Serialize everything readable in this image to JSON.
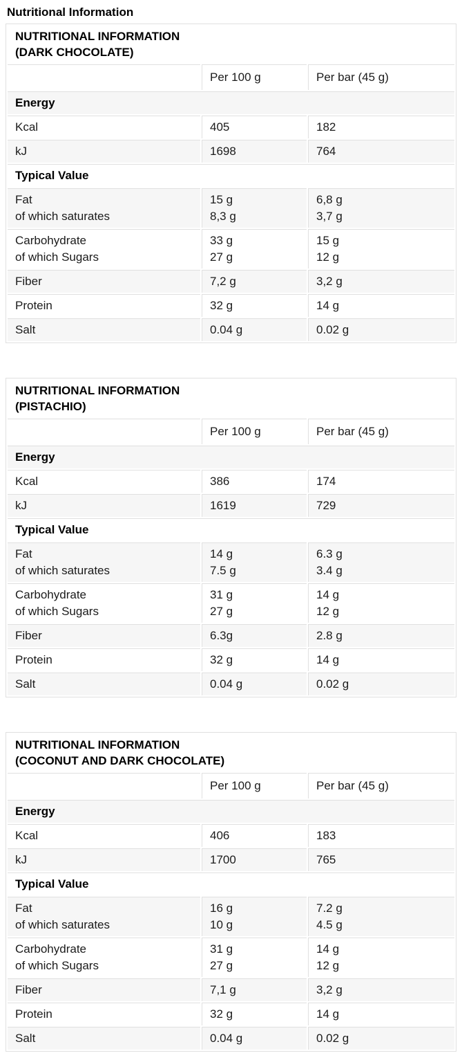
{
  "page": {
    "heading": "Nutritional Information"
  },
  "tables": [
    {
      "title": "NUTRITIONAL INFORMATION\n(DARK CHOCOLATE)",
      "columns": [
        "Per 100 g",
        "Per bar (45 g)"
      ],
      "rows": [
        {
          "type": "section",
          "label": "Energy"
        },
        {
          "type": "data",
          "label": "Kcal",
          "per100": "405",
          "perbar": "182"
        },
        {
          "type": "data",
          "label": "kJ",
          "per100": "1698",
          "perbar": "764"
        },
        {
          "type": "section",
          "label": "Typical Value"
        },
        {
          "type": "data",
          "label": "Fat\nof which saturates",
          "per100": "15 g\n8,3 g",
          "perbar": "6,8 g\n3,7 g"
        },
        {
          "type": "data",
          "label": "Carbohydrate\nof which Sugars",
          "per100": "33 g\n27 g",
          "perbar": "15 g\n12 g"
        },
        {
          "type": "data",
          "label": "Fiber",
          "per100": "7,2 g",
          "perbar": "3,2 g"
        },
        {
          "type": "data",
          "label": "Protein",
          "per100": "32 g",
          "perbar": "14 g"
        },
        {
          "type": "data",
          "label": "Salt",
          "per100": "0.04 g",
          "perbar": "0.02 g"
        }
      ]
    },
    {
      "title": "NUTRITIONAL INFORMATION\n(PISTACHIO)",
      "columns": [
        "Per 100 g",
        "Per bar (45 g)"
      ],
      "rows": [
        {
          "type": "section",
          "label": "Energy"
        },
        {
          "type": "data",
          "label": "Kcal",
          "per100": "386",
          "perbar": "174"
        },
        {
          "type": "data",
          "label": "kJ",
          "per100": "1619",
          "perbar": "729"
        },
        {
          "type": "section",
          "label": "Typical Value"
        },
        {
          "type": "data",
          "label": "Fat\nof which saturates",
          "per100": "14 g\n7.5 g",
          "perbar": "6.3 g\n3.4 g"
        },
        {
          "type": "data",
          "label": "Carbohydrate\nof which Sugars",
          "per100": "31 g\n27 g",
          "perbar": "14 g\n12 g"
        },
        {
          "type": "data",
          "label": "Fiber",
          "per100": "6.3g",
          "perbar": "2.8 g"
        },
        {
          "type": "data",
          "label": "Protein",
          "per100": "32 g",
          "perbar": "14 g"
        },
        {
          "type": "data",
          "label": "Salt",
          "per100": "0.04 g",
          "perbar": "0.02 g"
        }
      ]
    },
    {
      "title": "NUTRITIONAL INFORMATION\n(COCONUT AND DARK CHOCOLATE)",
      "columns": [
        "Per 100 g",
        "Per bar (45 g)"
      ],
      "rows": [
        {
          "type": "section",
          "label": "Energy"
        },
        {
          "type": "data",
          "label": "Kcal",
          "per100": "406",
          "perbar": "183"
        },
        {
          "type": "data",
          "label": "kJ",
          "per100": "1700",
          "perbar": "765"
        },
        {
          "type": "section",
          "label": "Typical Value"
        },
        {
          "type": "data",
          "label": "Fat\nof which saturates",
          "per100": "16 g\n10 g",
          "perbar": "7.2 g\n4.5 g"
        },
        {
          "type": "data",
          "label": "Carbohydrate\nof which Sugars",
          "per100": "31 g\n27 g",
          "perbar": "14 g\n12 g"
        },
        {
          "type": "data",
          "label": "Fiber",
          "per100": "7,1 g",
          "perbar": "3,2 g"
        },
        {
          "type": "data",
          "label": "Protein",
          "per100": "32 g",
          "perbar": "14 g"
        },
        {
          "type": "data",
          "label": "Salt",
          "per100": "0.04 g",
          "perbar": "0.02 g"
        }
      ]
    }
  ],
  "colors": {
    "row_shade": "#f6f6f6",
    "border": "#e0e0e0",
    "text": "#1b1b1b"
  }
}
